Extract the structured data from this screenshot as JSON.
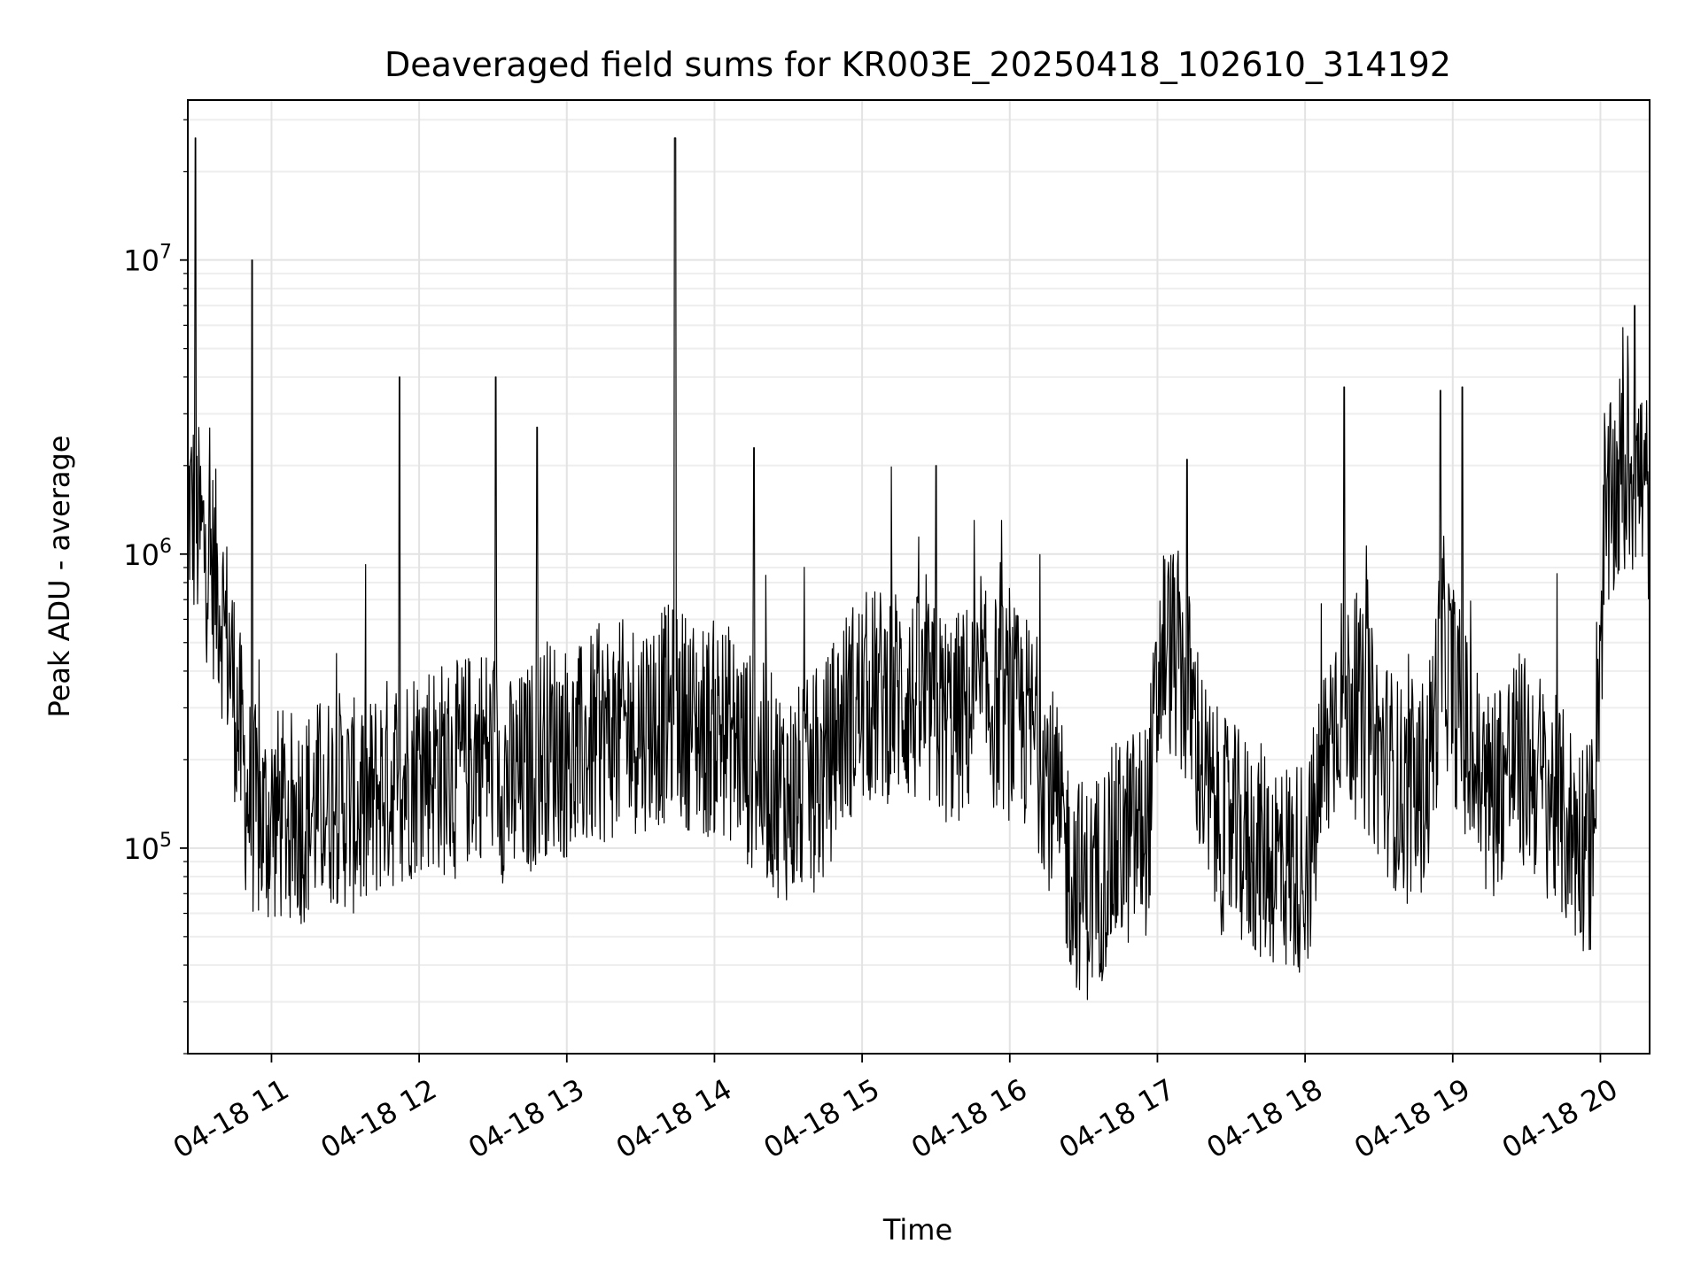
{
  "chart_data": {
    "type": "line",
    "title": "Deaveraged field sums for KR003E_20250418_102610_314192",
    "xlabel": "Time",
    "ylabel": "Peak ADU - average",
    "x_tick_labels": [
      "04-18 11",
      "04-18 12",
      "04-18 13",
      "04-18 14",
      "04-18 15",
      "04-18 16",
      "04-18 17",
      "04-18 18",
      "04-18 19",
      "04-18 20"
    ],
    "x_tick_hours": [
      11,
      12,
      13,
      14,
      15,
      16,
      17,
      18,
      19,
      20
    ],
    "y_tick_labels": [
      {
        "base": "10",
        "exp": "5",
        "value": 100000
      },
      {
        "base": "10",
        "exp": "6",
        "value": 1000000
      },
      {
        "base": "10",
        "exp": "7",
        "value": 10000000
      }
    ],
    "x_range": [
      "2025-04-18 10:26",
      "2025-04-18 20:20"
    ],
    "y_range": [
      20000,
      35000000
    ],
    "y_scale": "log",
    "grid": true,
    "legend": "none",
    "series": [
      {
        "color": "#000000",
        "x": [
          "10:26",
          "10:32",
          "10:38",
          "10:44",
          "10:50",
          "10:56",
          "11:02",
          "11:08",
          "11:14",
          "11:20",
          "11:26",
          "11:32",
          "11:38",
          "11:44",
          "11:50",
          "11:56",
          "12:02",
          "12:08",
          "12:14",
          "12:20",
          "12:26",
          "12:32",
          "12:38",
          "12:44",
          "12:50",
          "12:56",
          "13:02",
          "13:08",
          "13:14",
          "13:20",
          "13:26",
          "13:32",
          "13:38",
          "13:44",
          "13:50",
          "13:56",
          "14:02",
          "14:08",
          "14:14",
          "14:20",
          "14:26",
          "14:32",
          "14:38",
          "14:44",
          "14:50",
          "14:56",
          "15:02",
          "15:08",
          "15:14",
          "15:20",
          "15:26",
          "15:32",
          "15:38",
          "15:44",
          "15:50",
          "15:56",
          "16:02",
          "16:08",
          "16:14",
          "16:20",
          "16:26",
          "16:32",
          "16:38",
          "16:44",
          "16:50",
          "16:56",
          "17:02",
          "17:08",
          "17:14",
          "17:20",
          "17:26",
          "17:32",
          "17:38",
          "17:44",
          "17:50",
          "17:56",
          "18:02",
          "18:08",
          "18:14",
          "18:20",
          "18:26",
          "18:32",
          "18:38",
          "18:44",
          "18:50",
          "18:56",
          "19:02",
          "19:08",
          "19:14",
          "19:20",
          "19:26",
          "19:32",
          "19:38",
          "19:44",
          "19:50",
          "19:56",
          "20:02",
          "20:08",
          "20:14",
          "20:20"
        ],
        "y": [
          1500000,
          1100000,
          800000,
          400000,
          150000,
          120000,
          130000,
          125000,
          130000,
          140000,
          150000,
          140000,
          130000,
          160000,
          170000,
          180000,
          200000,
          190000,
          180000,
          200000,
          220000,
          190000,
          160000,
          180000,
          220000,
          230000,
          200000,
          220000,
          240000,
          250000,
          260000,
          270000,
          280000,
          290000,
          270000,
          250000,
          260000,
          240000,
          200000,
          180000,
          160000,
          150000,
          160000,
          170000,
          250000,
          300000,
          320000,
          330000,
          340000,
          320000,
          300000,
          280000,
          270000,
          300000,
          320000,
          310000,
          280000,
          260000,
          200000,
          120000,
          80000,
          70000,
          85000,
          100000,
          110000,
          120000,
          500000,
          450000,
          300000,
          150000,
          120000,
          110000,
          100000,
          95000,
          90000,
          85000,
          95000,
          200000,
          350000,
          300000,
          250000,
          200000,
          160000,
          140000,
          180000,
          500000,
          300000,
          200000,
          150000,
          180000,
          200000,
          190000,
          160000,
          130000,
          110000,
          100000,
          1200000,
          1800000,
          2000000,
          1500000
        ],
        "spikes": [
          {
            "time": "10:29",
            "value": 26000000
          },
          {
            "time": "10:52",
            "value": 10000000
          },
          {
            "time": "11:52",
            "value": 4000000
          },
          {
            "time": "12:31",
            "value": 4000000
          },
          {
            "time": "12:48",
            "value": 2700000
          },
          {
            "time": "13:44",
            "value": 26000000
          },
          {
            "time": "14:16",
            "value": 2300000
          },
          {
            "time": "15:30",
            "value": 2000000
          },
          {
            "time": "17:12",
            "value": 2100000
          },
          {
            "time": "18:16",
            "value": 3700000
          },
          {
            "time": "18:55",
            "value": 3600000
          },
          {
            "time": "19:04",
            "value": 3700000
          },
          {
            "time": "20:14",
            "value": 7000000
          }
        ]
      }
    ]
  }
}
